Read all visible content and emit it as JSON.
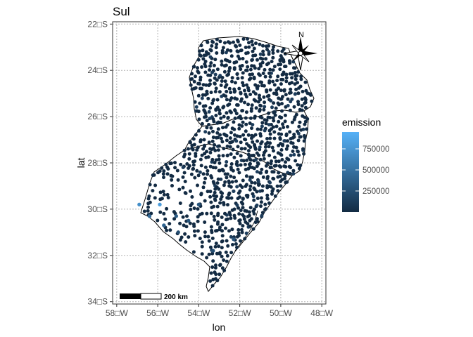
{
  "chart_data": {
    "type": "map",
    "title": "Sul",
    "xlabel": "lon",
    "ylabel": "lat",
    "xlim": [
      -58.2,
      -47.8
    ],
    "ylim": [
      -34.1,
      -21.9
    ],
    "x_ticks": [
      -58,
      -56,
      -54,
      -52,
      -50,
      -48
    ],
    "y_ticks": [
      -22,
      -24,
      -26,
      -28,
      -30,
      -32,
      -34
    ],
    "x_tick_labels": [
      "58□W",
      "56□W",
      "54□W",
      "52□W",
      "50□W",
      "48□W"
    ],
    "y_tick_labels": [
      "22□S",
      "24□S",
      "26□S",
      "28□S",
      "30□S",
      "32□S",
      "34□S"
    ],
    "grid": true,
    "legend": {
      "title": "emission",
      "ticks": [
        250000,
        500000,
        750000
      ],
      "tick_labels": [
        "250000",
        "500000",
        "750000"
      ],
      "range": [
        0,
        950000
      ],
      "low_color": "#132b43",
      "high_color": "#56b1f7",
      "placement": "right"
    },
    "north_arrow_label": "N",
    "scale_bar_label": "200 km",
    "point_color_default": "#132b43",
    "highlighted_points": [
      {
        "lon": -56.9,
        "lat": -29.8,
        "emission": 700000
      },
      {
        "lon": -55.9,
        "lat": -29.8,
        "emission": 800000
      },
      {
        "lon": -56.4,
        "lat": -30.3,
        "emission": 450000
      },
      {
        "lon": -55.7,
        "lat": -30.7,
        "emission": 400000
      },
      {
        "lon": -55.1,
        "lat": -30.3,
        "emission": 350000
      },
      {
        "lon": -54.0,
        "lat": -29.8,
        "emission": 300000
      },
      {
        "lon": -54.5,
        "lat": -30.5,
        "emission": 300000
      },
      {
        "lon": -53.3,
        "lat": -31.8,
        "emission": 250000
      },
      {
        "lon": -52.3,
        "lat": -31.3,
        "emission": 300000
      },
      {
        "lon": -55.0,
        "lat": -31.0,
        "emission": 250000
      }
    ]
  }
}
